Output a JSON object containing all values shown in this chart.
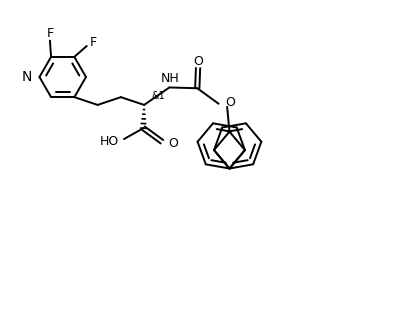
{
  "bg_color": "#ffffff",
  "line_color": "#000000",
  "lw": 1.4,
  "fs": 9,
  "fig_w": 3.93,
  "fig_h": 3.13,
  "dpi": 100,
  "xlim": [
    0,
    10
  ],
  "ylim": [
    0,
    8
  ]
}
